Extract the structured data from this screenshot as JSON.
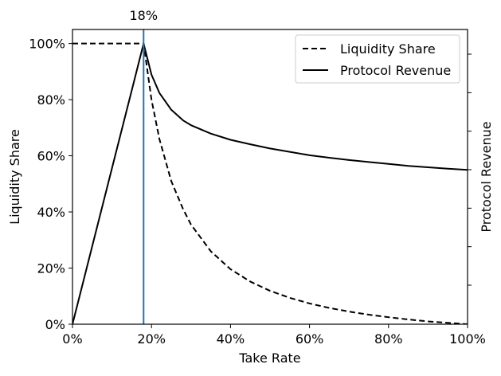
{
  "chart_data": {
    "type": "line",
    "title": "",
    "xlabel": "Take Rate",
    "ylabel": "Liquidity Share",
    "y2label": "Protocol Revenue",
    "xlim": [
      0,
      1
    ],
    "ylim": [
      0,
      1.05
    ],
    "x_ticks": [
      0,
      0.2,
      0.4,
      0.6,
      0.8,
      1.0
    ],
    "x_tick_labels": [
      "0%",
      "20%",
      "40%",
      "60%",
      "80%",
      "100%"
    ],
    "y_ticks": [
      0,
      0.2,
      0.4,
      0.6,
      0.8,
      1.0
    ],
    "y_tick_labels": [
      "0%",
      "20%",
      "40%",
      "60%",
      "80%",
      "100%"
    ],
    "y2_tick_count": 7,
    "grid": false,
    "legend_position": "top-right",
    "annotation": {
      "x": 0.18,
      "label": "18%",
      "color": "#1f77b4"
    },
    "series": [
      {
        "name": "Liquidity Share",
        "style": "dashed",
        "color": "#000000",
        "x": [
          0,
          0.05,
          0.1,
          0.15,
          0.18,
          0.2,
          0.22,
          0.25,
          0.28,
          0.3,
          0.35,
          0.4,
          0.45,
          0.5,
          0.55,
          0.6,
          0.65,
          0.7,
          0.75,
          0.8,
          0.85,
          0.9,
          0.95,
          1.0
        ],
        "y": [
          1.0,
          1.0,
          1.0,
          1.0,
          1.0,
          0.8,
          0.66,
          0.51,
          0.41,
          0.355,
          0.26,
          0.196,
          0.152,
          0.119,
          0.094,
          0.074,
          0.058,
          0.045,
          0.034,
          0.025,
          0.017,
          0.01,
          0.005,
          0.0
        ]
      },
      {
        "name": "Protocol Revenue",
        "style": "solid",
        "color": "#000000",
        "x": [
          0,
          0.05,
          0.1,
          0.15,
          0.18,
          0.2,
          0.22,
          0.25,
          0.28,
          0.3,
          0.35,
          0.4,
          0.45,
          0.5,
          0.55,
          0.6,
          0.65,
          0.7,
          0.75,
          0.8,
          0.85,
          0.9,
          0.95,
          1.0
        ],
        "y": [
          0.0,
          0.278,
          0.556,
          0.833,
          1.0,
          0.889,
          0.824,
          0.764,
          0.726,
          0.709,
          0.679,
          0.657,
          0.641,
          0.626,
          0.614,
          0.602,
          0.593,
          0.585,
          0.578,
          0.571,
          0.564,
          0.559,
          0.554,
          0.55
        ]
      }
    ]
  }
}
